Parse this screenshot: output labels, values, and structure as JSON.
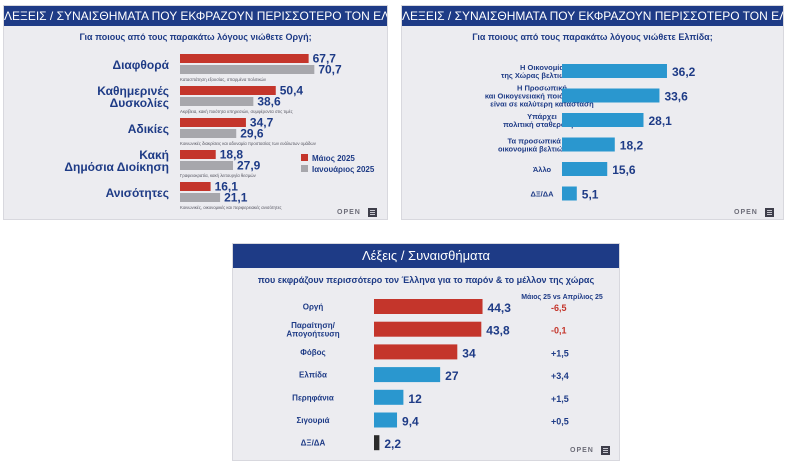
{
  "colors": {
    "header": "#1e3b86",
    "label": "#1e3b86",
    "may": "#c4352b",
    "january": "#a7a7ac",
    "cyan": "#2a97cf",
    "dark": "#2b2b2b",
    "negative": "#c4352b"
  },
  "panel_left": {
    "title": "ΛΕΞΕΙΣ / ΣΥΝΑΙΣΘΗΜΑΤΑ ΠΟΥ ΕΚΦΡΑΖΟΥΝ ΠΕΡΙΣΣΟΤΕΡΟ ΤΟΝ ΕΛΛΗΝΑ",
    "subtitle": "Για ποιους από τους παρακάτω λόγους νιώθετε Οργή;",
    "logo": "OPEN"
  },
  "panel_right": {
    "title": "ΛΕΞΕΙΣ / ΣΥΝΑΙΣΘΗΜΑΤΑ ΠΟΥ ΕΚΦΡΑΖΟΥΝ ΠΕΡΙΣΣΟΤΕΡΟ ΤΟΝ ΕΛΛΗΝΑ",
    "subtitle": "Για ποιους από τους παρακάτω λόγους νιώθετε Ελπίδα;",
    "logo": "OPEN"
  },
  "panel_bottom": {
    "title": "Λέξεις / Συναισθήματα",
    "subtitle": "που εκφράζουν περισσότερο τον Έλληνα για το παρόν & το μέλλον της χώρας",
    "change_header": "Μάιος 25 vs Απρίλιος 25",
    "logo": "OPEN"
  },
  "chart_data": [
    {
      "type": "bar",
      "orientation": "horizontal",
      "title": "Για ποιους από τους παρακάτω λόγους νιώθετε Οργή;",
      "categories": [
        [
          "Διαφθορά"
        ],
        [
          "Καθημερινές",
          "Δυσκολίες"
        ],
        [
          "Αδικίες"
        ],
        [
          "Κακή",
          "Δημόσια Διοίκηση"
        ],
        [
          "Ανισότητες"
        ]
      ],
      "series": [
        {
          "name": "Μάιος 2025",
          "values": [
            67.7,
            50.4,
            34.7,
            18.8,
            16.1
          ],
          "labels": [
            "67,7",
            "50,4",
            "34,7",
            "18,8",
            "16,1"
          ]
        },
        {
          "name": "Ιανουάριος 2025",
          "values": [
            70.7,
            38.6,
            29.6,
            27.9,
            21.1
          ],
          "labels": [
            "70,7",
            "38,6",
            "29,6",
            "27,9",
            "21,1"
          ]
        }
      ],
      "annotations": [
        "Κατασπάτηση εξουσίας, σπαρμένα πολιτικών",
        "Ακρίβεια, κακή ποιότητα υπηρεσιών, συμφέροντα στις τιμές",
        "Κοινωνικές διακρίσεις και αδυναμία προστασίας των ευάλωτων ομάδων",
        "Γραφειοκρατία, κακή λειτουργία θεσμών",
        "Κοινωνικές, οικονομικές και περιφερειακές ανισότητες"
      ]
    },
    {
      "type": "bar",
      "orientation": "horizontal",
      "title": "Για ποιους από τους παρακάτω λόγους νιώθετε Ελπίδα;",
      "categories": [
        [
          "Η Οικονομία",
          "της Χώρας βελτιώνεται"
        ],
        [
          "Η Προσωπική",
          "και Οικογενειακή ποιότητα ζωής",
          "είναι σε καλύτερη κατάσταση"
        ],
        [
          "Υπάρχει",
          "πολιτική σταθερότητα"
        ],
        [
          "Τα προσωπικά μου",
          "οικονομικά βελτιώνονται"
        ],
        [
          "Άλλο"
        ],
        [
          "ΔΞ/ΔΑ"
        ]
      ],
      "values": [
        36.2,
        33.6,
        28.1,
        18.2,
        15.6,
        5.1
      ],
      "labels": [
        "36,2",
        "33,6",
        "28,1",
        "18,2",
        "15,6",
        "5,1"
      ]
    },
    {
      "type": "bar",
      "orientation": "horizontal",
      "title": "Λέξεις / Συναισθήματα",
      "categories": [
        [
          "Οργή"
        ],
        [
          "Παραίτηση/",
          "Απογοήτευση"
        ],
        [
          "Φόβος"
        ],
        [
          "Ελπίδα"
        ],
        [
          "Περηφάνια"
        ],
        [
          "Σιγουριά"
        ],
        [
          "ΔΞ/ΔΑ"
        ]
      ],
      "values": [
        44.3,
        43.8,
        34,
        27,
        12,
        9.4,
        2.2
      ],
      "labels": [
        "44,3",
        "43,8",
        "34",
        "27",
        "12",
        "9,4",
        "2,2"
      ],
      "changes": [
        "-6,5",
        "-0,1",
        "+1,5",
        "+3,4",
        "+1,5",
        "+0,5",
        ""
      ]
    }
  ]
}
